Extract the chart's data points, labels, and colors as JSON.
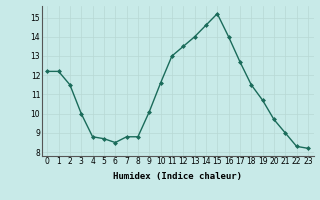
{
  "x": [
    0,
    1,
    2,
    3,
    4,
    5,
    6,
    7,
    8,
    9,
    10,
    11,
    12,
    13,
    14,
    15,
    16,
    17,
    18,
    19,
    20,
    21,
    22,
    23
  ],
  "y": [
    12.2,
    12.2,
    11.5,
    10.0,
    8.8,
    8.7,
    8.5,
    8.8,
    8.8,
    10.1,
    11.6,
    13.0,
    13.5,
    14.0,
    14.6,
    15.2,
    14.0,
    12.7,
    11.5,
    10.7,
    9.7,
    9.0,
    8.3,
    8.2
  ],
  "xlabel": "Humidex (Indice chaleur)",
  "xlim": [
    -0.5,
    23.5
  ],
  "ylim": [
    7.8,
    15.6
  ],
  "yticks": [
    8,
    9,
    10,
    11,
    12,
    13,
    14,
    15
  ],
  "xticks": [
    0,
    1,
    2,
    3,
    4,
    5,
    6,
    7,
    8,
    9,
    10,
    11,
    12,
    13,
    14,
    15,
    16,
    17,
    18,
    19,
    20,
    21,
    22,
    23
  ],
  "line_color": "#1a6b5a",
  "marker": "D",
  "marker_size": 2.0,
  "linewidth": 1.0,
  "bg_color": "#c8eae8",
  "grid_color": "#b8d8d4",
  "tick_fontsize": 5.5,
  "xlabel_fontsize": 6.5
}
